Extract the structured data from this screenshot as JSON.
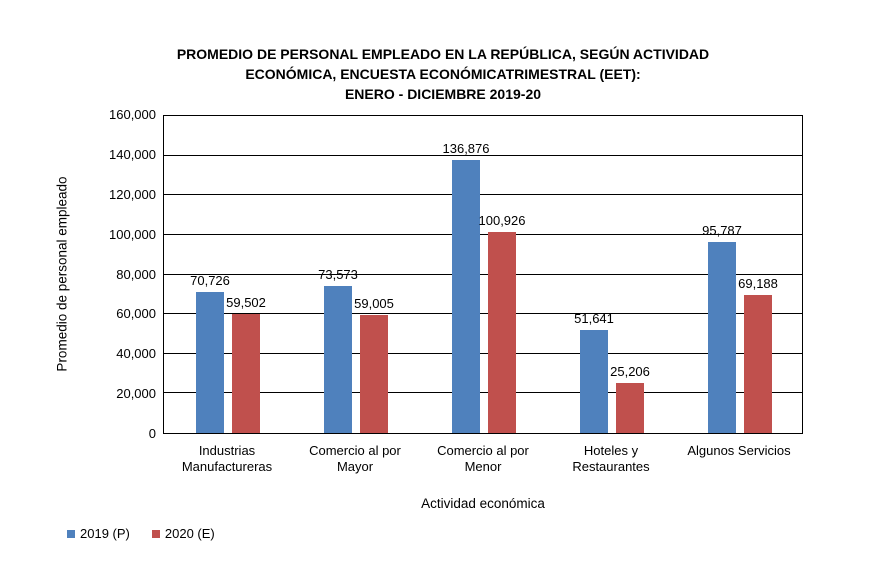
{
  "page": {
    "background": "#ffffff"
  },
  "chart_data": {
    "type": "bar",
    "title": "PROMEDIO DE PERSONAL EMPLEADO EN LA REPÚBLICA, SEGÚN ACTIVIDAD ECONÓMICA, ENCUESTA ECONÓMICATRIMESTRAL (EET): ENERO - DICIEMBRE 2019-20",
    "title_lines": [
      "PROMEDIO DE PERSONAL EMPLEADO EN LA REPÚBLICA, SEGÚN ACTIVIDAD",
      "ECONÓMICA, ENCUESTA ECONÓMICATRIMESTRAL (EET):",
      "ENERO - DICIEMBRE 2019-20"
    ],
    "xlabel": "Actividad económica",
    "ylabel": "Promedio de personal empleado",
    "categories": [
      "Industrias Manufactureras",
      "Comercio al por Mayor",
      "Comercio al por Menor",
      "Hoteles y Restaurantes",
      "Algunos Servicios"
    ],
    "category_lines": [
      [
        "Industrias",
        "Manufactureras"
      ],
      [
        "Comercio al por",
        "Mayor"
      ],
      [
        "Comercio al por",
        "Menor"
      ],
      [
        "Hoteles y",
        "Restaurantes"
      ],
      [
        "Algunos Servicios"
      ]
    ],
    "series": [
      {
        "name": "2019 (P)",
        "color": "#4F81BD",
        "values": [
          70726,
          73573,
          136876,
          51641,
          95787
        ],
        "labels": [
          "70,726",
          "73,573",
          "136,876",
          "51,641",
          "95,787"
        ]
      },
      {
        "name": "2020 (E)",
        "color": "#C0504D",
        "values": [
          59502,
          59005,
          100926,
          25206,
          69188
        ],
        "labels": [
          "59,502",
          "59,005",
          "100,926",
          "25,206",
          "69,188"
        ]
      }
    ],
    "ylim": [
      0,
      160000
    ],
    "ytick_step": 20000,
    "ytick_values": [
      0,
      20000,
      40000,
      60000,
      80000,
      100000,
      120000,
      140000,
      160000
    ],
    "ytick_labels": [
      "0",
      "20,000",
      "40,000",
      "60,000",
      "80,000",
      "100,000",
      "120,000",
      "140,000",
      "160,000"
    ],
    "grid": true,
    "legend_position": "bottom-left",
    "axis_color": "#000000",
    "text_color": "#000000"
  }
}
